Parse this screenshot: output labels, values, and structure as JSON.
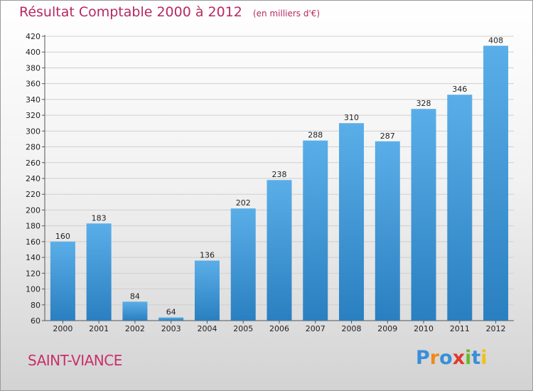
{
  "title": "Résultat Comptable 2000 à 2012",
  "subtitle": "(en milliers d'€)",
  "commune": "SAINT-VIANCE",
  "logo": {
    "text": "Proxiti",
    "letters": [
      {
        "ch": "P",
        "color": "#3a8fd8"
      },
      {
        "ch": "r",
        "color": "#f08a1c"
      },
      {
        "ch": "o",
        "color": "#3a8fd8"
      },
      {
        "ch": "x",
        "color": "#e03a2e"
      },
      {
        "ch": "i",
        "color": "#6ab82e"
      },
      {
        "ch": "t",
        "color": "#3a8fd8"
      },
      {
        "ch": "i",
        "color": "#f0c01c"
      }
    ]
  },
  "chart_data": {
    "type": "bar",
    "categories": [
      "2000",
      "2001",
      "2002",
      "2003",
      "2004",
      "2005",
      "2006",
      "2007",
      "2008",
      "2009",
      "2010",
      "2011",
      "2012"
    ],
    "values": [
      160,
      183,
      84,
      64,
      136,
      202,
      238,
      288,
      310,
      287,
      328,
      346,
      408
    ],
    "ylim": [
      60,
      420
    ],
    "yticks": [
      60,
      80,
      100,
      120,
      140,
      160,
      180,
      200,
      220,
      240,
      260,
      280,
      300,
      320,
      340,
      360,
      380,
      400,
      420
    ],
    "grid": true,
    "bar_color_top": "#5aaee8",
    "bar_color_bottom": "#2a7fc0"
  }
}
